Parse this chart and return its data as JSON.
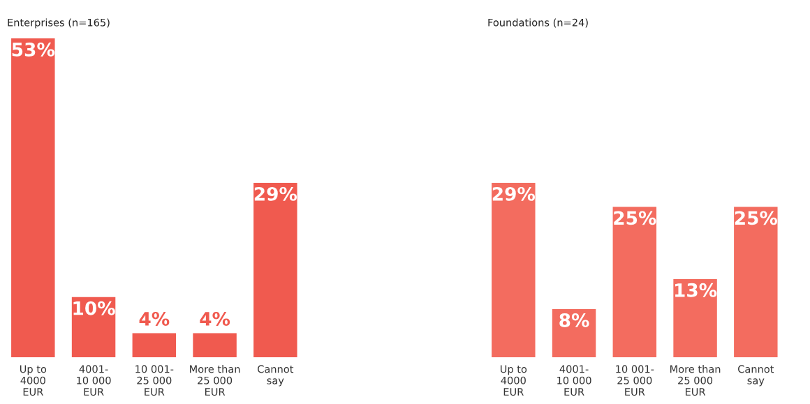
{
  "chart_data": [
    {
      "type": "bar",
      "title": "Enterprises (n=165)",
      "categories": [
        "Up to\n4000\nEUR",
        "4001-\n10 000\nEUR",
        "10 001-\n25 000\nEUR",
        "More than\n25 000\nEUR",
        "Cannot\nsay"
      ],
      "values": [
        53,
        10,
        4,
        4,
        29
      ],
      "value_labels": [
        "53%",
        "10%",
        "4%",
        "4%",
        "29%"
      ],
      "color": "#f05a4f"
    },
    {
      "type": "bar",
      "title": "Foundations (n=24)",
      "categories": [
        "Up to\n4000\nEUR",
        "4001-\n10 000\nEUR",
        "10 001-\n25 000\nEUR",
        "More than\n25 000\nEUR",
        "Cannot\nsay"
      ],
      "values": [
        29,
        8,
        25,
        13,
        25
      ],
      "value_labels": [
        "29%",
        "8%",
        "25%",
        "13%",
        "25%"
      ],
      "color": "#f36c5f"
    }
  ]
}
